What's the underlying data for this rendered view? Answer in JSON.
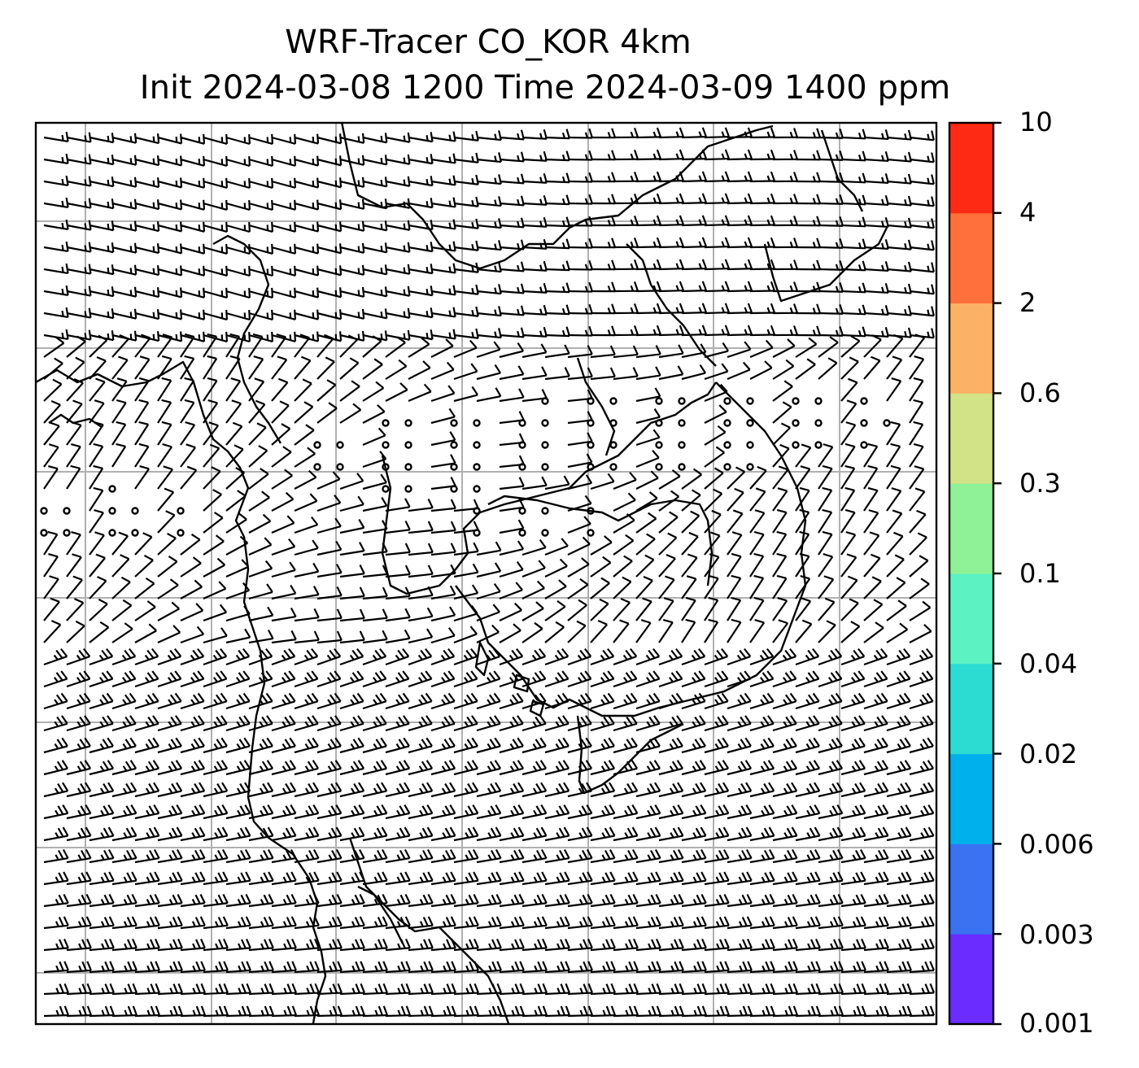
{
  "title": {
    "line1": "WRF-Tracer CO_KOR 4km",
    "line2": "Init 2024-03-08 1200 Time 2024-03-09 1400 ppm"
  },
  "colorbar": {
    "levels": [
      "0.001",
      "0.003",
      "0.006",
      "0.02",
      "0.04",
      "0.1",
      "0.3",
      "0.6",
      "2",
      "4",
      "10"
    ],
    "colors": [
      "#6a2cff",
      "#3a72f2",
      "#00b0ec",
      "#2cdcd2",
      "#5cf2c2",
      "#90f296",
      "#d2e286",
      "#fcb266",
      "#ff703c",
      "#ff2a14"
    ]
  },
  "map": {
    "gridlines": true,
    "gridline_color": "#b0b0b0",
    "coastline_color": "#000000",
    "symbol": "wind barbs",
    "calm_symbol": "circle"
  }
}
